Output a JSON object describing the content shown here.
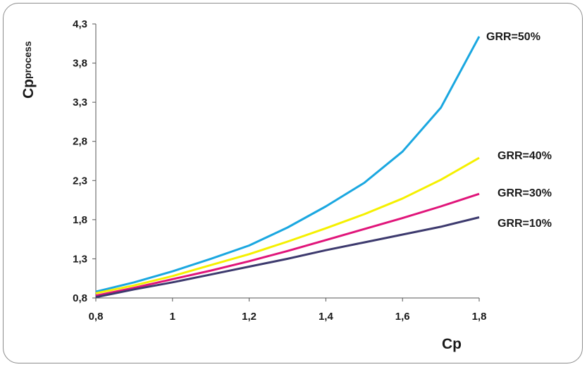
{
  "chart_data": {
    "type": "line",
    "xlabel": "Cp",
    "ylabel": {
      "main": "Cp",
      "sub": "process"
    },
    "xlim": [
      0.8,
      1.8
    ],
    "ylim": [
      0.8,
      4.3
    ],
    "x_ticks": [
      "0,8",
      "1",
      "1,2",
      "1,4",
      "1,6",
      "1,8"
    ],
    "y_ticks": [
      "0,8",
      "1,3",
      "1,8",
      "2,3",
      "2,8",
      "3,3",
      "3,8",
      "4,3"
    ],
    "grid": false,
    "legend": "inline labels at right end of lines",
    "x": [
      0.8,
      0.9,
      1.0,
      1.1,
      1.2,
      1.3,
      1.4,
      1.5,
      1.6,
      1.7,
      1.8
    ],
    "series": [
      {
        "name": "GRR=50%",
        "color": "#1aa7e0",
        "values": [
          0.88,
          1.0,
          1.14,
          1.3,
          1.47,
          1.7,
          1.97,
          2.27,
          2.67,
          3.23,
          4.14
        ]
      },
      {
        "name": "GRR=40%",
        "color": "#f5f000",
        "values": [
          0.86,
          0.96,
          1.08,
          1.22,
          1.36,
          1.52,
          1.69,
          1.87,
          2.07,
          2.31,
          2.59
        ]
      },
      {
        "name": "GRR=30%",
        "color": "#e0157a",
        "values": [
          0.83,
          0.93,
          1.04,
          1.15,
          1.27,
          1.4,
          1.54,
          1.68,
          1.82,
          1.97,
          2.13
        ]
      },
      {
        "name": "GRR=10%",
        "color": "#3d3a6e",
        "values": [
          0.81,
          0.91,
          1.0,
          1.1,
          1.2,
          1.3,
          1.41,
          1.51,
          1.61,
          1.71,
          1.83
        ]
      }
    ]
  }
}
